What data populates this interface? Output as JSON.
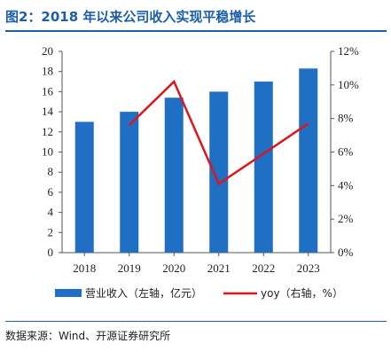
{
  "title": "图2：2018 年以来公司收入实现平稳增长",
  "source": "数据来源：Wind、开源证券研究所",
  "colors": {
    "accent": "#1b5fa8",
    "bar": "#1f6fc4",
    "line": "#e0141c"
  },
  "chart_data": {
    "type": "bar",
    "categories": [
      "2018",
      "2019",
      "2020",
      "2021",
      "2022",
      "2023"
    ],
    "series": [
      {
        "name": "营业收入（左轴，亿元）",
        "type": "bar",
        "axis": "left",
        "values": [
          13.0,
          14.0,
          15.4,
          16.0,
          17.0,
          18.3
        ]
      },
      {
        "name": "yoy（右轴，%）",
        "type": "line",
        "axis": "right",
        "values": [
          null,
          7.6,
          10.2,
          4.1,
          5.9,
          7.7
        ]
      }
    ],
    "y_left": {
      "min": 0,
      "max": 20,
      "ticks": [
        0,
        2,
        4,
        6,
        8,
        10,
        12,
        14,
        16,
        18,
        20
      ]
    },
    "y_right": {
      "min": 0,
      "max": 12,
      "ticks": [
        "0%",
        "2%",
        "4%",
        "6%",
        "8%",
        "10%",
        "12%"
      ]
    },
    "legend_position": "bottom",
    "grid": false
  }
}
